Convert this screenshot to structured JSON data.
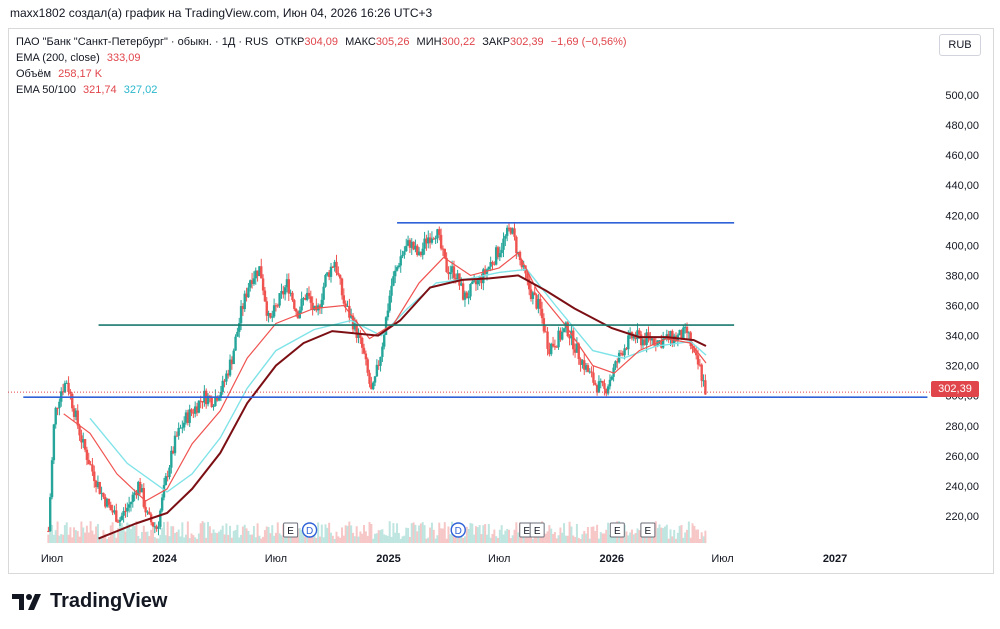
{
  "header": {
    "caption": "maxx1802 создал(а) график на TradingView.com, Июн 04, 2026 16:26 UTC+3"
  },
  "legend": {
    "symbol": "ПАО \"Банк \"Санкт-Петербург\" · обыкн. · 1Д · RUS",
    "open_label": "ОТКР",
    "open": "304,09",
    "high_label": "МАКС",
    "high": "305,26",
    "low_label": "МИН",
    "low": "300,22",
    "close_label": "ЗАКР",
    "close": "302,39",
    "change": "−1,69 (−0,56%)",
    "ema200_label": "EMA (200, close)",
    "ema200": "333,09",
    "volume_label": "Объём",
    "volume": "258,17 K",
    "ema50100_label": "EMA 50/100",
    "ema50": "321,74",
    "ema100": "327,02"
  },
  "currency_button": "RUB",
  "last_price_tag": "302,39",
  "brand": {
    "name": "TradingView",
    "logo_icon": "tradingview-logo-icon"
  },
  "colors": {
    "candle_up": "#26a69a",
    "candle_down": "#ef5350",
    "ema50": "#ef5350",
    "ema100": "#7fe3e8",
    "ema200": "#7b0f14",
    "level_blue": "#2f62d8",
    "level_green": "#1a7a6e",
    "price_tag": "#e0454b"
  },
  "chart_data": {
    "type": "candlestick",
    "y_axis": {
      "ticks": [
        "500,00",
        "480,00",
        "460,00",
        "440,00",
        "420,00",
        "400,00",
        "380,00",
        "360,00",
        "340,00",
        "320,00",
        "300,00",
        "280,00",
        "260,00",
        "240,00",
        "220,00"
      ],
      "range": [
        205,
        515
      ]
    },
    "x_axis": {
      "ticks": [
        "Июл",
        "2024",
        "Июл",
        "2025",
        "Июл",
        "2026",
        "Июл",
        "2027"
      ]
    },
    "price_series": [
      [
        "2023-06-25",
        210
      ],
      [
        "2023-07-05",
        287
      ],
      [
        "2023-07-15",
        303
      ],
      [
        "2023-07-25",
        310
      ],
      [
        "2023-08-05",
        292
      ],
      [
        "2023-08-20",
        268
      ],
      [
        "2023-09-05",
        250
      ],
      [
        "2023-09-20",
        235
      ],
      [
        "2023-10-05",
        224
      ],
      [
        "2023-10-20",
        218
      ],
      [
        "2023-11-05",
        228
      ],
      [
        "2023-11-20",
        242
      ],
      [
        "2023-12-05",
        218
      ],
      [
        "2023-12-20",
        212
      ],
      [
        "2024-01-05",
        248
      ],
      [
        "2024-01-20",
        272
      ],
      [
        "2024-02-05",
        285
      ],
      [
        "2024-02-20",
        292
      ],
      [
        "2024-03-05",
        300
      ],
      [
        "2024-03-20",
        297
      ],
      [
        "2024-04-05",
        306
      ],
      [
        "2024-04-20",
        325
      ],
      [
        "2024-05-05",
        355
      ],
      [
        "2024-05-20",
        378
      ],
      [
        "2024-06-05",
        385
      ],
      [
        "2024-06-20",
        348
      ],
      [
        "2024-07-05",
        362
      ],
      [
        "2024-07-20",
        375
      ],
      [
        "2024-08-05",
        355
      ],
      [
        "2024-08-20",
        368
      ],
      [
        "2024-09-05",
        352
      ],
      [
        "2024-09-20",
        378
      ],
      [
        "2024-10-05",
        390
      ],
      [
        "2024-10-20",
        362
      ],
      [
        "2024-11-05",
        348
      ],
      [
        "2024-11-20",
        330
      ],
      [
        "2024-12-05",
        300
      ],
      [
        "2024-12-20",
        330
      ],
      [
        "2025-01-05",
        372
      ],
      [
        "2025-01-20",
        392
      ],
      [
        "2025-02-05",
        402
      ],
      [
        "2025-02-20",
        392
      ],
      [
        "2025-03-05",
        405
      ],
      [
        "2025-03-20",
        410
      ],
      [
        "2025-04-05",
        385
      ],
      [
        "2025-04-20",
        382
      ],
      [
        "2025-05-05",
        365
      ],
      [
        "2025-05-20",
        372
      ],
      [
        "2025-06-05",
        380
      ],
      [
        "2025-06-20",
        390
      ],
      [
        "2025-07-05",
        400
      ],
      [
        "2025-07-20",
        412
      ],
      [
        "2025-08-05",
        388
      ],
      [
        "2025-08-20",
        370
      ],
      [
        "2025-09-05",
        358
      ],
      [
        "2025-09-20",
        332
      ],
      [
        "2025-10-05",
        338
      ],
      [
        "2025-10-20",
        345
      ],
      [
        "2025-11-05",
        330
      ],
      [
        "2025-11-20",
        318
      ],
      [
        "2025-12-05",
        308
      ],
      [
        "2025-12-20",
        303
      ],
      [
        "2026-01-05",
        318
      ],
      [
        "2026-01-20",
        332
      ],
      [
        "2026-02-05",
        340
      ],
      [
        "2026-02-20",
        337
      ],
      [
        "2026-03-05",
        338
      ],
      [
        "2026-03-20",
        336
      ],
      [
        "2026-04-05",
        338
      ],
      [
        "2026-04-20",
        339
      ],
      [
        "2026-05-05",
        342
      ],
      [
        "2026-05-15",
        326
      ],
      [
        "2026-05-25",
        318
      ],
      [
        "2026-06-04",
        302.39
      ]
    ],
    "ema50": [
      [
        "2023-07-20",
        288
      ],
      [
        "2023-09-01",
        275
      ],
      [
        "2023-10-15",
        248
      ],
      [
        "2023-12-01",
        230
      ],
      [
        "2024-01-05",
        238
      ],
      [
        "2024-02-15",
        268
      ],
      [
        "2024-04-01",
        290
      ],
      [
        "2024-05-15",
        325
      ],
      [
        "2024-07-01",
        348
      ],
      [
        "2024-09-01",
        358
      ],
      [
        "2024-10-20",
        360
      ],
      [
        "2024-12-01",
        338
      ],
      [
        "2025-01-10",
        348
      ],
      [
        "2025-02-20",
        375
      ],
      [
        "2025-04-01",
        392
      ],
      [
        "2025-05-15",
        380
      ],
      [
        "2025-07-01",
        385
      ],
      [
        "2025-08-01",
        395
      ],
      [
        "2025-09-01",
        370
      ],
      [
        "2025-10-15",
        348
      ],
      [
        "2025-12-01",
        320
      ],
      [
        "2026-01-05",
        315
      ],
      [
        "2026-02-15",
        330
      ],
      [
        "2026-04-01",
        338
      ],
      [
        "2026-05-10",
        335
      ],
      [
        "2026-06-04",
        321.74
      ]
    ],
    "ema100": [
      [
        "2023-09-01",
        285
      ],
      [
        "2023-11-01",
        255
      ],
      [
        "2024-01-05",
        236
      ],
      [
        "2024-02-15",
        248
      ],
      [
        "2024-04-01",
        272
      ],
      [
        "2024-05-15",
        305
      ],
      [
        "2024-07-01",
        330
      ],
      [
        "2024-09-01",
        344
      ],
      [
        "2024-11-01",
        350
      ],
      [
        "2024-12-20",
        340
      ],
      [
        "2025-02-01",
        358
      ],
      [
        "2025-03-20",
        375
      ],
      [
        "2025-05-15",
        378
      ],
      [
        "2025-07-01",
        382
      ],
      [
        "2025-08-15",
        384
      ],
      [
        "2025-10-01",
        360
      ],
      [
        "2025-12-01",
        330
      ],
      [
        "2026-01-20",
        325
      ],
      [
        "2026-03-15",
        333
      ],
      [
        "2026-05-10",
        336
      ],
      [
        "2026-06-04",
        327.02
      ]
    ],
    "ema200": [
      [
        "2023-09-15",
        205
      ],
      [
        "2023-11-15",
        215
      ],
      [
        "2024-01-05",
        222
      ],
      [
        "2024-02-15",
        238
      ],
      [
        "2024-04-01",
        262
      ],
      [
        "2024-05-15",
        295
      ],
      [
        "2024-07-01",
        320
      ],
      [
        "2024-08-15",
        335
      ],
      [
        "2024-10-01",
        343
      ],
      [
        "2024-12-15",
        340
      ],
      [
        "2025-01-20",
        350
      ],
      [
        "2025-03-10",
        372
      ],
      [
        "2025-05-01",
        377
      ],
      [
        "2025-06-15",
        378
      ],
      [
        "2025-08-01",
        380
      ],
      [
        "2025-09-15",
        370
      ],
      [
        "2025-11-01",
        358
      ],
      [
        "2026-01-01",
        345
      ],
      [
        "2026-02-15",
        339
      ],
      [
        "2026-04-01",
        339
      ],
      [
        "2026-05-15",
        337
      ],
      [
        "2026-06-04",
        333.09
      ]
    ],
    "horizontal_levels": [
      {
        "from": "2025-01-15",
        "to": "2026-07-20",
        "price": 415,
        "color": "#2f62d8"
      },
      {
        "from": "2023-09-15",
        "to": "2026-07-20",
        "price": 347,
        "color": "#1a7a6e"
      },
      {
        "from": "2023-05-15",
        "to": "2027-06-01",
        "price": 299,
        "color": "#2f62d8"
      }
    ],
    "event_markers": [
      {
        "date": "2024-07-25",
        "label": "E"
      },
      {
        "date": "2024-08-25",
        "label": "D"
      },
      {
        "date": "2025-04-25",
        "label": "D"
      },
      {
        "date": "2025-08-15",
        "label": "E"
      },
      {
        "date": "2025-09-01",
        "label": "E"
      },
      {
        "date": "2026-01-10",
        "label": "E"
      },
      {
        "date": "2026-03-01",
        "label": "E"
      }
    ],
    "last_price": 302.39,
    "grid": false
  }
}
